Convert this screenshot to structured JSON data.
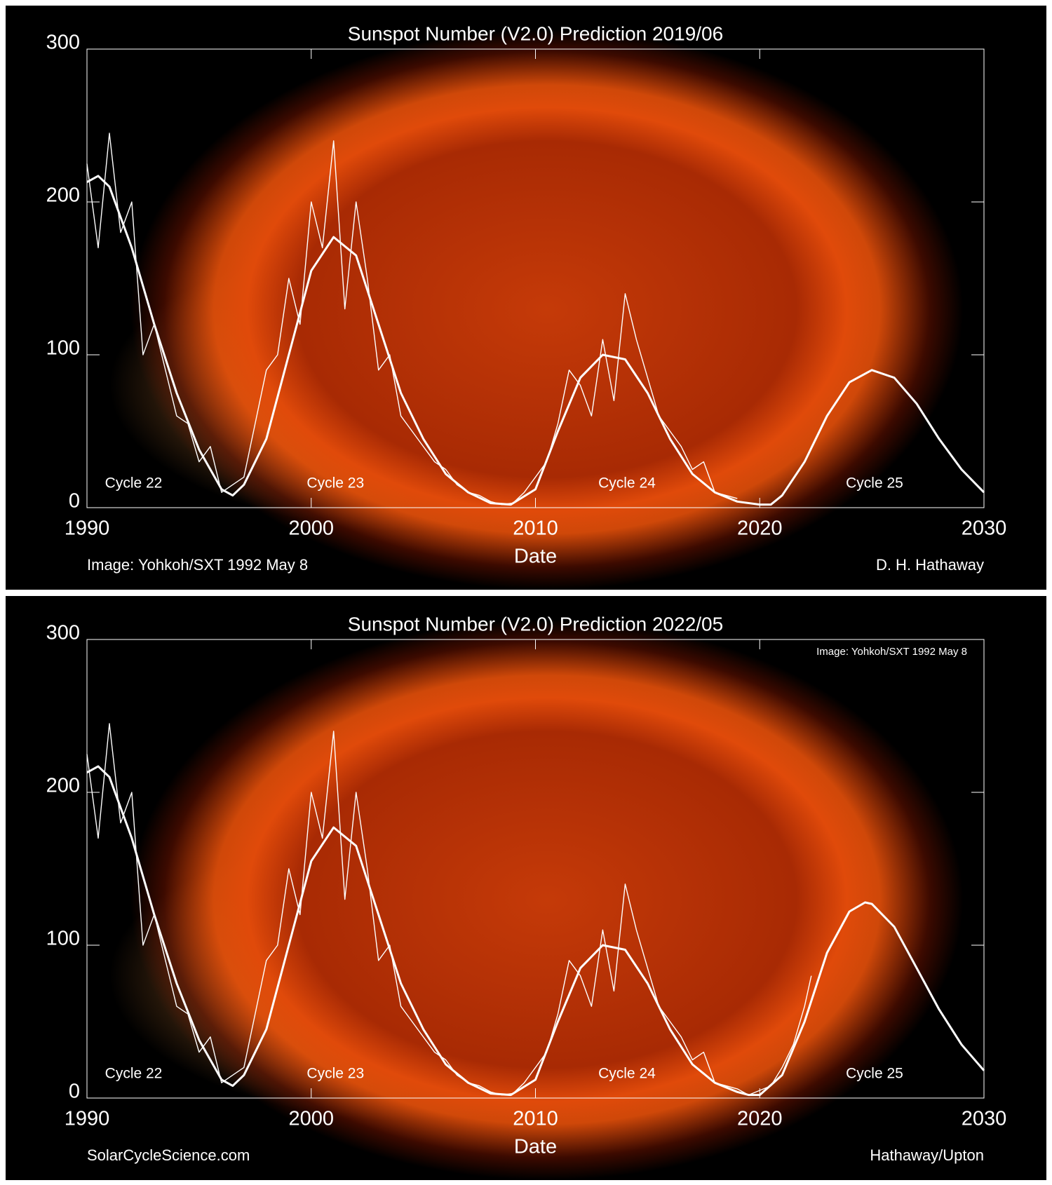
{
  "chart_data": [
    {
      "type": "line",
      "title": "Sunspot Number (V2.0) Prediction 2019/06",
      "xlabel": "Date",
      "xlim": [
        1990,
        2030
      ],
      "ylim": [
        0,
        300
      ],
      "xticks": [
        1990,
        2000,
        2010,
        2020,
        2030
      ],
      "yticks": [
        0,
        100,
        200,
        300
      ],
      "cycle_labels": [
        "Cycle 22",
        "Cycle 23",
        "Cycle 24",
        "Cycle 25"
      ],
      "credit_left": "Image: Yohkoh/SXT 1992 May 8",
      "credit_right": "D. H. Hathaway",
      "series": [
        {
          "color": "#ffffff",
          "x": [
            1990,
            1990.5,
            1991,
            1991.5,
            1992,
            1992.5,
            1993,
            1993.5,
            1994,
            1994.5,
            1995,
            1995.5,
            1996,
            1996.5,
            1997,
            1997.5,
            1998,
            1998.5,
            1999,
            1999.5,
            2000,
            2000.5,
            2001,
            2001.5,
            2002,
            2002.5,
            2003,
            2003.5,
            2004,
            2004.5,
            2005,
            2005.5,
            2006,
            2006.5,
            2007,
            2007.5,
            2008,
            2008.5,
            2009,
            2009.5,
            2010,
            2010.5,
            2011,
            2011.5,
            2012,
            2012.5,
            2013,
            2013.5,
            2014,
            2014.5,
            2015,
            2015.5,
            2016,
            2016.5,
            2017,
            2017.5,
            2018,
            2018.5,
            2019
          ],
          "values": [
            225,
            170,
            245,
            180,
            200,
            100,
            120,
            90,
            60,
            55,
            30,
            40,
            10,
            15,
            20,
            55,
            90,
            100,
            150,
            120,
            200,
            170,
            240,
            130,
            200,
            150,
            90,
            100,
            60,
            50,
            40,
            30,
            25,
            15,
            10,
            8,
            4,
            2,
            3,
            10,
            20,
            30,
            55,
            90,
            80,
            60,
            110,
            70,
            140,
            110,
            85,
            60,
            50,
            40,
            25,
            30,
            10,
            8,
            6
          ]
        },
        {
          "color": "#ffffff",
          "x": [
            1990,
            1990.5,
            1991,
            1992,
            1993,
            1994,
            1995,
            1996,
            1996.5,
            1997,
            1998,
            1999,
            2000,
            2001,
            2002,
            2003,
            2004,
            2005,
            2006,
            2007,
            2008,
            2008.9,
            2010,
            2011,
            2012,
            2013,
            2014,
            2015,
            2016,
            2017,
            2018,
            2019,
            2020,
            2020.5,
            2021,
            2022,
            2023,
            2024,
            2025,
            2026,
            2027,
            2028,
            2029,
            2030
          ],
          "values": [
            213,
            217,
            210,
            170,
            120,
            75,
            38,
            12,
            8,
            15,
            45,
            100,
            155,
            177,
            165,
            120,
            75,
            45,
            22,
            10,
            3,
            2,
            12,
            50,
            85,
            100,
            97,
            75,
            45,
            22,
            10,
            4,
            2,
            2,
            8,
            30,
            60,
            82,
            90,
            85,
            68,
            45,
            25,
            10
          ]
        }
      ]
    },
    {
      "type": "line",
      "title": "Sunspot Number (V2.0) Prediction 2022/05",
      "xlabel": "Date",
      "xlim": [
        1990,
        2030
      ],
      "ylim": [
        0,
        300
      ],
      "xticks": [
        1990,
        2000,
        2010,
        2020,
        2030
      ],
      "yticks": [
        0,
        100,
        200,
        300
      ],
      "cycle_labels": [
        "Cycle 22",
        "Cycle 23",
        "Cycle 24",
        "Cycle 25"
      ],
      "credit_left": "SolarCycleScience.com",
      "credit_right": "Hathaway/Upton",
      "image_credit": "Image: Yohkoh/SXT 1992 May 8",
      "series": [
        {
          "color": "#ffffff",
          "x": [
            1990,
            1990.5,
            1991,
            1991.5,
            1992,
            1992.5,
            1993,
            1993.5,
            1994,
            1994.5,
            1995,
            1995.5,
            1996,
            1996.5,
            1997,
            1997.5,
            1998,
            1998.5,
            1999,
            1999.5,
            2000,
            2000.5,
            2001,
            2001.5,
            2002,
            2002.5,
            2003,
            2003.5,
            2004,
            2004.5,
            2005,
            2005.5,
            2006,
            2006.5,
            2007,
            2007.5,
            2008,
            2008.5,
            2009,
            2009.5,
            2010,
            2010.5,
            2011,
            2011.5,
            2012,
            2012.5,
            2013,
            2013.5,
            2014,
            2014.5,
            2015,
            2015.5,
            2016,
            2016.5,
            2017,
            2017.5,
            2018,
            2018.5,
            2019,
            2019.5,
            2020,
            2020.5,
            2021,
            2021.5,
            2022,
            2022.3
          ],
          "values": [
            225,
            170,
            245,
            180,
            200,
            100,
            120,
            90,
            60,
            55,
            30,
            40,
            10,
            15,
            20,
            55,
            90,
            100,
            150,
            120,
            200,
            170,
            240,
            130,
            200,
            150,
            90,
            100,
            60,
            50,
            40,
            30,
            25,
            15,
            10,
            8,
            4,
            2,
            3,
            10,
            20,
            30,
            55,
            90,
            80,
            60,
            110,
            70,
            140,
            110,
            85,
            60,
            50,
            40,
            25,
            30,
            10,
            8,
            6,
            2,
            5,
            8,
            20,
            35,
            60,
            80
          ]
        },
        {
          "color": "#ffffff",
          "x": [
            1990,
            1990.5,
            1991,
            1992,
            1993,
            1994,
            1995,
            1996,
            1996.5,
            1997,
            1998,
            1999,
            2000,
            2001,
            2002,
            2003,
            2004,
            2005,
            2006,
            2007,
            2008,
            2008.9,
            2010,
            2011,
            2012,
            2013,
            2014,
            2015,
            2016,
            2017,
            2018,
            2019,
            2019.5,
            2020,
            2021,
            2022,
            2023,
            2024,
            2024.7,
            2025,
            2026,
            2027,
            2028,
            2029,
            2030
          ],
          "values": [
            213,
            217,
            210,
            170,
            120,
            75,
            38,
            12,
            8,
            15,
            45,
            100,
            155,
            177,
            165,
            120,
            75,
            45,
            22,
            10,
            3,
            2,
            12,
            50,
            85,
            100,
            97,
            75,
            45,
            22,
            10,
            4,
            2,
            2,
            15,
            50,
            95,
            122,
            128,
            127,
            112,
            85,
            58,
            35,
            18
          ]
        }
      ]
    }
  ]
}
